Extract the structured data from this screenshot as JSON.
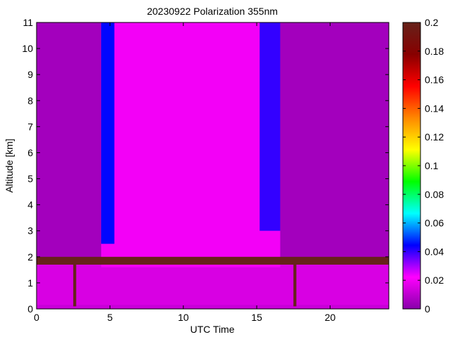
{
  "chart_data": {
    "type": "heatmap",
    "title": "20230922 Polarization 355nm",
    "xlabel": "UTC Time",
    "ylabel": "Altitude [km]",
    "xlim": [
      0,
      24
    ],
    "ylim": [
      0,
      11
    ],
    "xticks": [
      0,
      5,
      10,
      15,
      20
    ],
    "yticks": [
      0,
      1,
      2,
      3,
      4,
      5,
      6,
      7,
      8,
      9,
      10,
      11
    ],
    "colorbar": {
      "min": 0,
      "max": 0.2,
      "ticks": [
        "0",
        "0.02",
        "0.04",
        "0.06",
        "0.08",
        "0.1",
        "0.12",
        "0.14",
        "0.16",
        "0.18",
        "0.2"
      ],
      "colormap": [
        "#8800aa",
        "#ff00ff",
        "#0000ff",
        "#00ffff",
        "#00ff00",
        "#ffff00",
        "#ff8800",
        "#ff0000",
        "#880000",
        "#66221a"
      ]
    },
    "background_value": 0.005,
    "regions": [
      {
        "x": [
          0,
          24
        ],
        "y": [
          0.15,
          1.75
        ],
        "value": 0.015
      },
      {
        "x": [
          0,
          24
        ],
        "y": [
          0.0,
          0.15
        ],
        "value": 0.012
      },
      {
        "x": [
          4.4,
          16.6
        ],
        "y": [
          1.6,
          11
        ],
        "value": 0.02
      },
      {
        "x": [
          4.4,
          5.3
        ],
        "y": [
          2.5,
          11
        ],
        "value": 0.045
      },
      {
        "x": [
          15.2,
          16.6
        ],
        "y": [
          3.0,
          11
        ],
        "value": 0.04
      }
    ],
    "features": [
      {
        "x": [
          0,
          24
        ],
        "y": [
          1.7,
          2.0
        ],
        "value": 0.2
      },
      {
        "x": [
          2.5,
          2.7
        ],
        "y": [
          0.1,
          1.9
        ],
        "value": 0.2
      },
      {
        "x": [
          17.5,
          17.7
        ],
        "y": [
          0.1,
          1.9
        ],
        "value": 0.2
      }
    ]
  }
}
